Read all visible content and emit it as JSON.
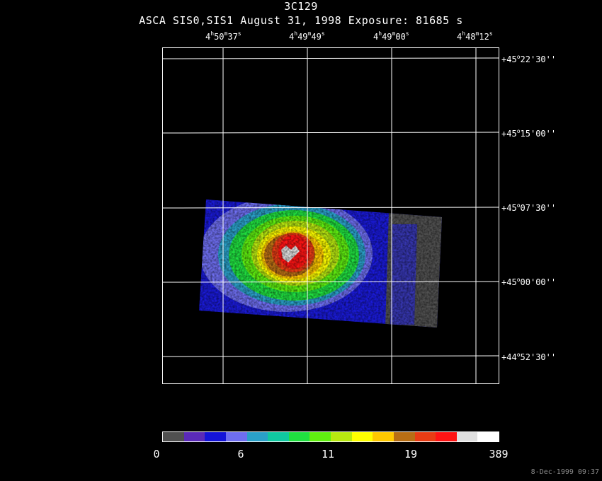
{
  "header": {
    "object": "3C129",
    "subtitle": "ASCA SIS0,SIS1 August 31, 1998 Exposure: 81685 s"
  },
  "ra_ticks": [
    {
      "h": "4",
      "m": "50",
      "s": "37"
    },
    {
      "h": "4",
      "m": "49",
      "s": "49"
    },
    {
      "h": "4",
      "m": "49",
      "s": "00"
    },
    {
      "h": "4",
      "m": "48",
      "s": "12"
    }
  ],
  "dec_ticks": [
    {
      "deg": "+45",
      "min": "22",
      "sec": "30"
    },
    {
      "deg": "+45",
      "min": "15",
      "sec": "00"
    },
    {
      "deg": "+45",
      "min": "07",
      "sec": "30"
    },
    {
      "deg": "+45",
      "min": "00",
      "sec": "00"
    },
    {
      "deg": "+44",
      "min": "52",
      "sec": "30"
    }
  ],
  "colorbar": {
    "colors": [
      "#505050",
      "#5a2ab8",
      "#1414d8",
      "#6e6ef0",
      "#2aa0c8",
      "#10c8a0",
      "#20e040",
      "#60f010",
      "#b8e810",
      "#ffff00",
      "#ffc800",
      "#b86e14",
      "#e83c14",
      "#ff1414",
      "#e0e0e0",
      "#ffffff"
    ],
    "labels": [
      "0",
      "6",
      "11",
      "19",
      "389"
    ]
  },
  "timestamp": "8-Dec-1999 09:37"
}
